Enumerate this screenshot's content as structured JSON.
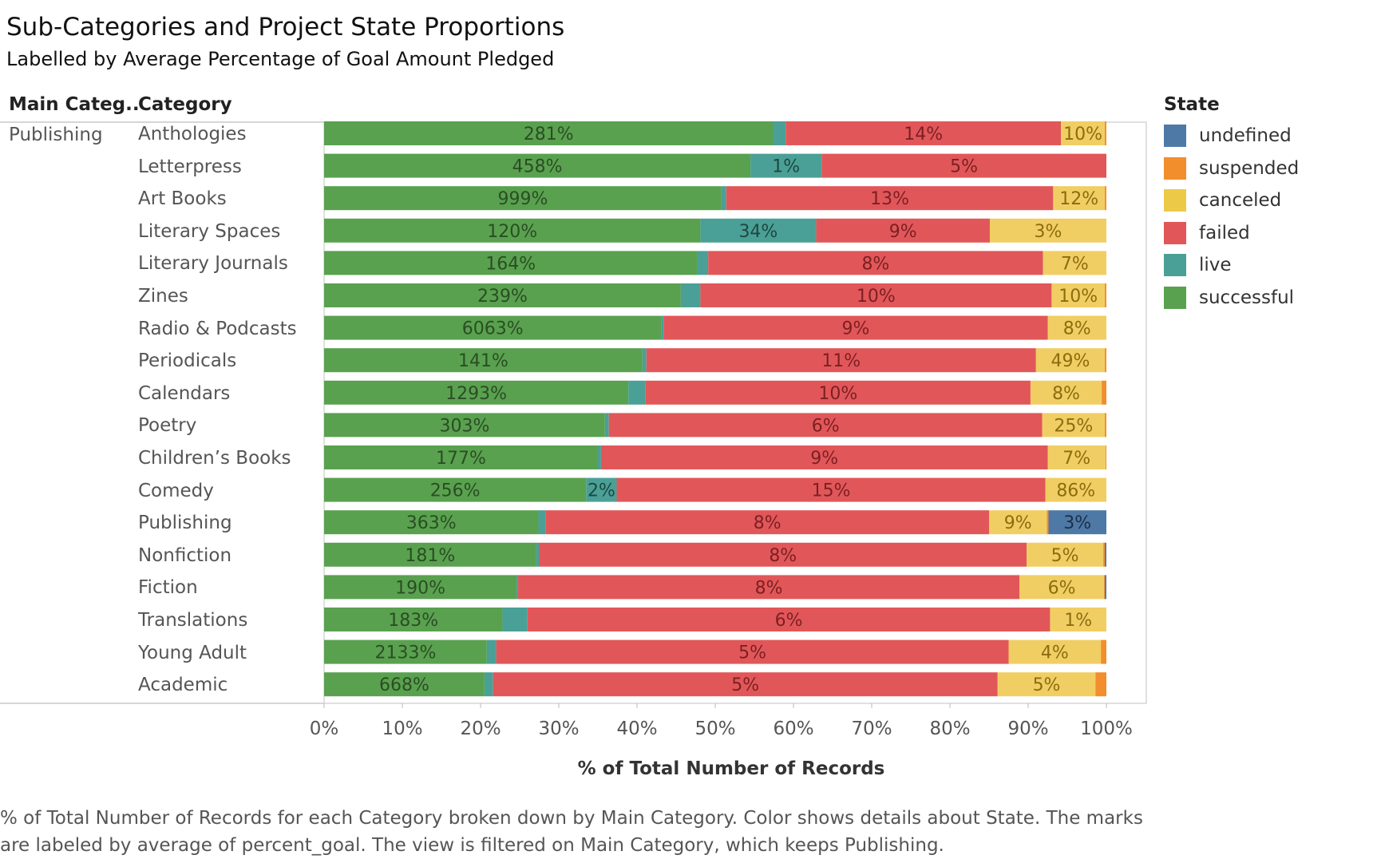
{
  "header": {
    "title": "Sub-Categories and Project State Proportions",
    "subtitle": "Labelled by Average Percentage of Goal Amount Pledged"
  },
  "table": {
    "col1_header": "Main Categ..",
    "col2_header": "Category",
    "main_category_value": "Publishing"
  },
  "legend": {
    "title": "State",
    "items": [
      {
        "label": "undefined",
        "color": "#4e79a7"
      },
      {
        "label": "suspended",
        "color": "#f28e2b"
      },
      {
        "label": "canceled",
        "color": "#edc948"
      },
      {
        "label": "failed",
        "color": "#e15759"
      },
      {
        "label": "live",
        "color": "#4aa096"
      },
      {
        "label": "successful",
        "color": "#59a14f"
      }
    ]
  },
  "colors": {
    "successful": "#59a14f",
    "live": "#4aa096",
    "failed": "#e15759",
    "canceled": "#f1ce63",
    "suspended": "#f28e2b",
    "undefined": "#4e79a7"
  },
  "footer": {
    "caption": "% of Total Number of Records for each Category broken down by Main Category.  Color shows details about State.  The marks are labeled by average of percent_goal. The view is filtered on Main Category, which keeps Publishing."
  },
  "chart_data": {
    "type": "bar",
    "orientation": "horizontal",
    "stacked": "100%",
    "xlabel": "% of Total Number of Records",
    "xlim": [
      0,
      100
    ],
    "x_ticks": [
      "0%",
      "10%",
      "20%",
      "30%",
      "40%",
      "50%",
      "60%",
      "70%",
      "80%",
      "90%",
      "100%"
    ],
    "grid": false,
    "legend_position": "right",
    "state_order": [
      "successful",
      "live",
      "failed",
      "canceled",
      "suspended",
      "undefined"
    ],
    "rows": [
      {
        "category": "Anthologies",
        "values": {
          "successful": 57.4,
          "live": 1.6,
          "failed": 35.2,
          "canceled": 5.6,
          "suspended": 0.2,
          "undefined": 0
        },
        "labels": {
          "successful": "281%",
          "failed": "14%",
          "canceled": "10%"
        }
      },
      {
        "category": "Letterpress",
        "values": {
          "successful": 54.5,
          "live": 9.1,
          "failed": 36.4,
          "canceled": 0,
          "suspended": 0,
          "undefined": 0
        },
        "labels": {
          "successful": "458%",
          "live": "1%",
          "failed": "5%"
        }
      },
      {
        "category": "Art Books",
        "values": {
          "successful": 50.8,
          "live": 0.6,
          "failed": 41.8,
          "canceled": 6.6,
          "suspended": 0.2,
          "undefined": 0
        },
        "labels": {
          "successful": "999%",
          "failed": "13%",
          "canceled": "12%"
        }
      },
      {
        "category": "Literary Spaces",
        "values": {
          "successful": 48.1,
          "live": 14.8,
          "failed": 22.2,
          "canceled": 14.9,
          "suspended": 0,
          "undefined": 0
        },
        "labels": {
          "successful": "120%",
          "live": "34%",
          "failed": "9%",
          "canceled": "3%"
        }
      },
      {
        "category": "Literary Journals",
        "values": {
          "successful": 47.7,
          "live": 1.4,
          "failed": 42.8,
          "canceled": 8.1,
          "suspended": 0,
          "undefined": 0
        },
        "labels": {
          "successful": "164%",
          "failed": "8%",
          "canceled": "7%"
        }
      },
      {
        "category": "Zines",
        "values": {
          "successful": 45.6,
          "live": 2.5,
          "failed": 44.9,
          "canceled": 6.8,
          "suspended": 0.2,
          "undefined": 0
        },
        "labels": {
          "successful": "239%",
          "failed": "10%",
          "canceled": "10%"
        }
      },
      {
        "category": "Radio & Podcasts",
        "values": {
          "successful": 43.1,
          "live": 0.3,
          "failed": 49.1,
          "canceled": 7.5,
          "suspended": 0,
          "undefined": 0
        },
        "labels": {
          "successful": "6063%",
          "failed": "9%",
          "canceled": "8%"
        }
      },
      {
        "category": "Periodicals",
        "values": {
          "successful": 40.7,
          "live": 0.5,
          "failed": 49.8,
          "canceled": 8.8,
          "suspended": 0.2,
          "undefined": 0
        },
        "labels": {
          "successful": "141%",
          "failed": "11%",
          "canceled": "49%"
        }
      },
      {
        "category": "Calendars",
        "values": {
          "successful": 38.9,
          "live": 2.2,
          "failed": 49.2,
          "canceled": 9.1,
          "suspended": 0.6,
          "undefined": 0
        },
        "labels": {
          "successful": "1293%",
          "failed": "10%",
          "canceled": "8%"
        }
      },
      {
        "category": "Poetry",
        "values": {
          "successful": 35.9,
          "live": 0.5,
          "failed": 55.4,
          "canceled": 8.0,
          "suspended": 0.2,
          "undefined": 0
        },
        "labels": {
          "successful": "303%",
          "failed": "6%",
          "canceled": "25%"
        }
      },
      {
        "category": "Children’s Books",
        "values": {
          "successful": 35.0,
          "live": 0.4,
          "failed": 57.1,
          "canceled": 7.4,
          "suspended": 0.1,
          "undefined": 0
        },
        "labels": {
          "successful": "177%",
          "failed": "9%",
          "canceled": "7%"
        }
      },
      {
        "category": "Comedy",
        "values": {
          "successful": 33.5,
          "live": 3.9,
          "failed": 54.8,
          "canceled": 7.8,
          "suspended": 0,
          "undefined": 0
        },
        "labels": {
          "successful": "256%",
          "live": "2%",
          "failed": "15%",
          "canceled": "86%"
        }
      },
      {
        "category": "Publishing",
        "values": {
          "successful": 27.4,
          "live": 0.9,
          "failed": 56.7,
          "canceled": 7.4,
          "suspended": 0.2,
          "undefined": 7.4
        },
        "labels": {
          "successful": "363%",
          "failed": "8%",
          "canceled": "9%",
          "undefined": "3%"
        }
      },
      {
        "category": "Nonfiction",
        "values": {
          "successful": 27.1,
          "live": 0.4,
          "failed": 62.3,
          "canceled": 9.8,
          "suspended": 0.2,
          "undefined": 0.2
        },
        "labels": {
          "successful": "181%",
          "failed": "8%",
          "canceled": "5%"
        }
      },
      {
        "category": "Fiction",
        "values": {
          "successful": 24.6,
          "live": 0.2,
          "failed": 64.1,
          "canceled": 10.8,
          "suspended": 0.1,
          "undefined": 0.2
        },
        "labels": {
          "successful": "190%",
          "failed": "8%",
          "canceled": "6%"
        }
      },
      {
        "category": "Translations",
        "values": {
          "successful": 22.8,
          "live": 3.2,
          "failed": 66.8,
          "canceled": 7.2,
          "suspended": 0,
          "undefined": 0
        },
        "labels": {
          "successful": "183%",
          "failed": "6%",
          "canceled": "1%"
        }
      },
      {
        "category": "Young Adult",
        "values": {
          "successful": 20.8,
          "live": 1.2,
          "failed": 65.5,
          "canceled": 11.8,
          "suspended": 0.7,
          "undefined": 0
        },
        "labels": {
          "successful": "2133%",
          "failed": "5%",
          "canceled": "4%"
        }
      },
      {
        "category": "Academic",
        "values": {
          "successful": 20.5,
          "live": 1.1,
          "failed": 64.5,
          "canceled": 12.5,
          "suspended": 1.4,
          "undefined": 0
        },
        "labels": {
          "successful": "668%",
          "failed": "5%",
          "canceled": "5%"
        }
      }
    ]
  }
}
